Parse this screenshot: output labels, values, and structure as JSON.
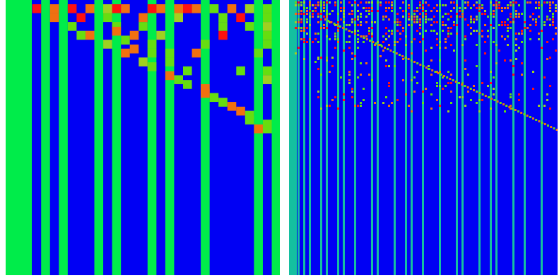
{
  "figure": {
    "description_colors": {
      "background": "#0000f4",
      "stripe": "#00ec4a",
      "stripe_teal": "#14c0a0",
      "red": "#ff1010",
      "orange": "#f07010",
      "lime": "#66dd10",
      "yellow_green": "#a0d020"
    },
    "panels": [
      {
        "id": "left",
        "grid_cols": 31,
        "grid_rows": 31,
        "stripe_cols": [
          0,
          1,
          2,
          4,
          6,
          10,
          12,
          16,
          18,
          22,
          28,
          30
        ],
        "red_cells": [
          [
            3,
            1
          ],
          [
            7,
            1
          ],
          [
            8,
            2
          ],
          [
            12,
            1
          ],
          [
            16,
            1
          ],
          [
            20,
            1
          ],
          [
            26,
            2
          ],
          [
            24,
            4
          ]
        ],
        "orange_cells": [
          [
            5,
            1
          ],
          [
            5,
            2
          ],
          [
            9,
            1
          ],
          [
            11,
            1
          ],
          [
            13,
            1
          ],
          [
            15,
            2
          ],
          [
            17,
            1
          ],
          [
            19,
            1
          ],
          [
            19,
            2
          ],
          [
            21,
            1
          ],
          [
            23,
            1
          ],
          [
            25,
            1
          ],
          [
            27,
            1
          ],
          [
            9,
            4
          ],
          [
            14,
            4
          ],
          [
            21,
            6
          ],
          [
            13,
            6
          ],
          [
            22,
            10
          ],
          [
            25,
            12
          ]
        ],
        "lime_cells": [
          [
            7,
            3
          ],
          [
            8,
            4
          ],
          [
            11,
            2
          ],
          [
            12,
            3
          ],
          [
            15,
            3
          ],
          [
            16,
            5
          ],
          [
            16,
            6
          ],
          [
            18,
            6
          ],
          [
            18,
            7
          ],
          [
            20,
            8
          ],
          [
            22,
            5
          ],
          [
            23,
            1
          ],
          [
            24,
            2
          ],
          [
            24,
            3
          ],
          [
            28,
            6
          ],
          [
            26,
            8
          ],
          [
            27,
            3
          ],
          [
            29,
            1
          ],
          [
            29,
            2
          ],
          [
            29,
            4
          ],
          [
            29,
            5
          ],
          [
            29,
            8
          ],
          [
            29,
            14
          ],
          [
            27,
            13
          ],
          [
            19,
            9
          ],
          [
            23,
            11
          ]
        ],
        "yellow_green_cells": [
          [
            11,
            5
          ],
          [
            15,
            7
          ],
          [
            19,
            2
          ],
          [
            17,
            4
          ],
          [
            11,
            1
          ],
          [
            27,
            1
          ],
          [
            29,
            3
          ],
          [
            29,
            9
          ]
        ]
      },
      {
        "id": "right",
        "grid_cols": 95,
        "grid_rows": 97,
        "stripe_cols": [
          0,
          2,
          3,
          5,
          7,
          11,
          13,
          17,
          19,
          23,
          29,
          31,
          37,
          41,
          43,
          47,
          53,
          59,
          61,
          67,
          71,
          73,
          79,
          83,
          89
        ]
      }
    ]
  }
}
